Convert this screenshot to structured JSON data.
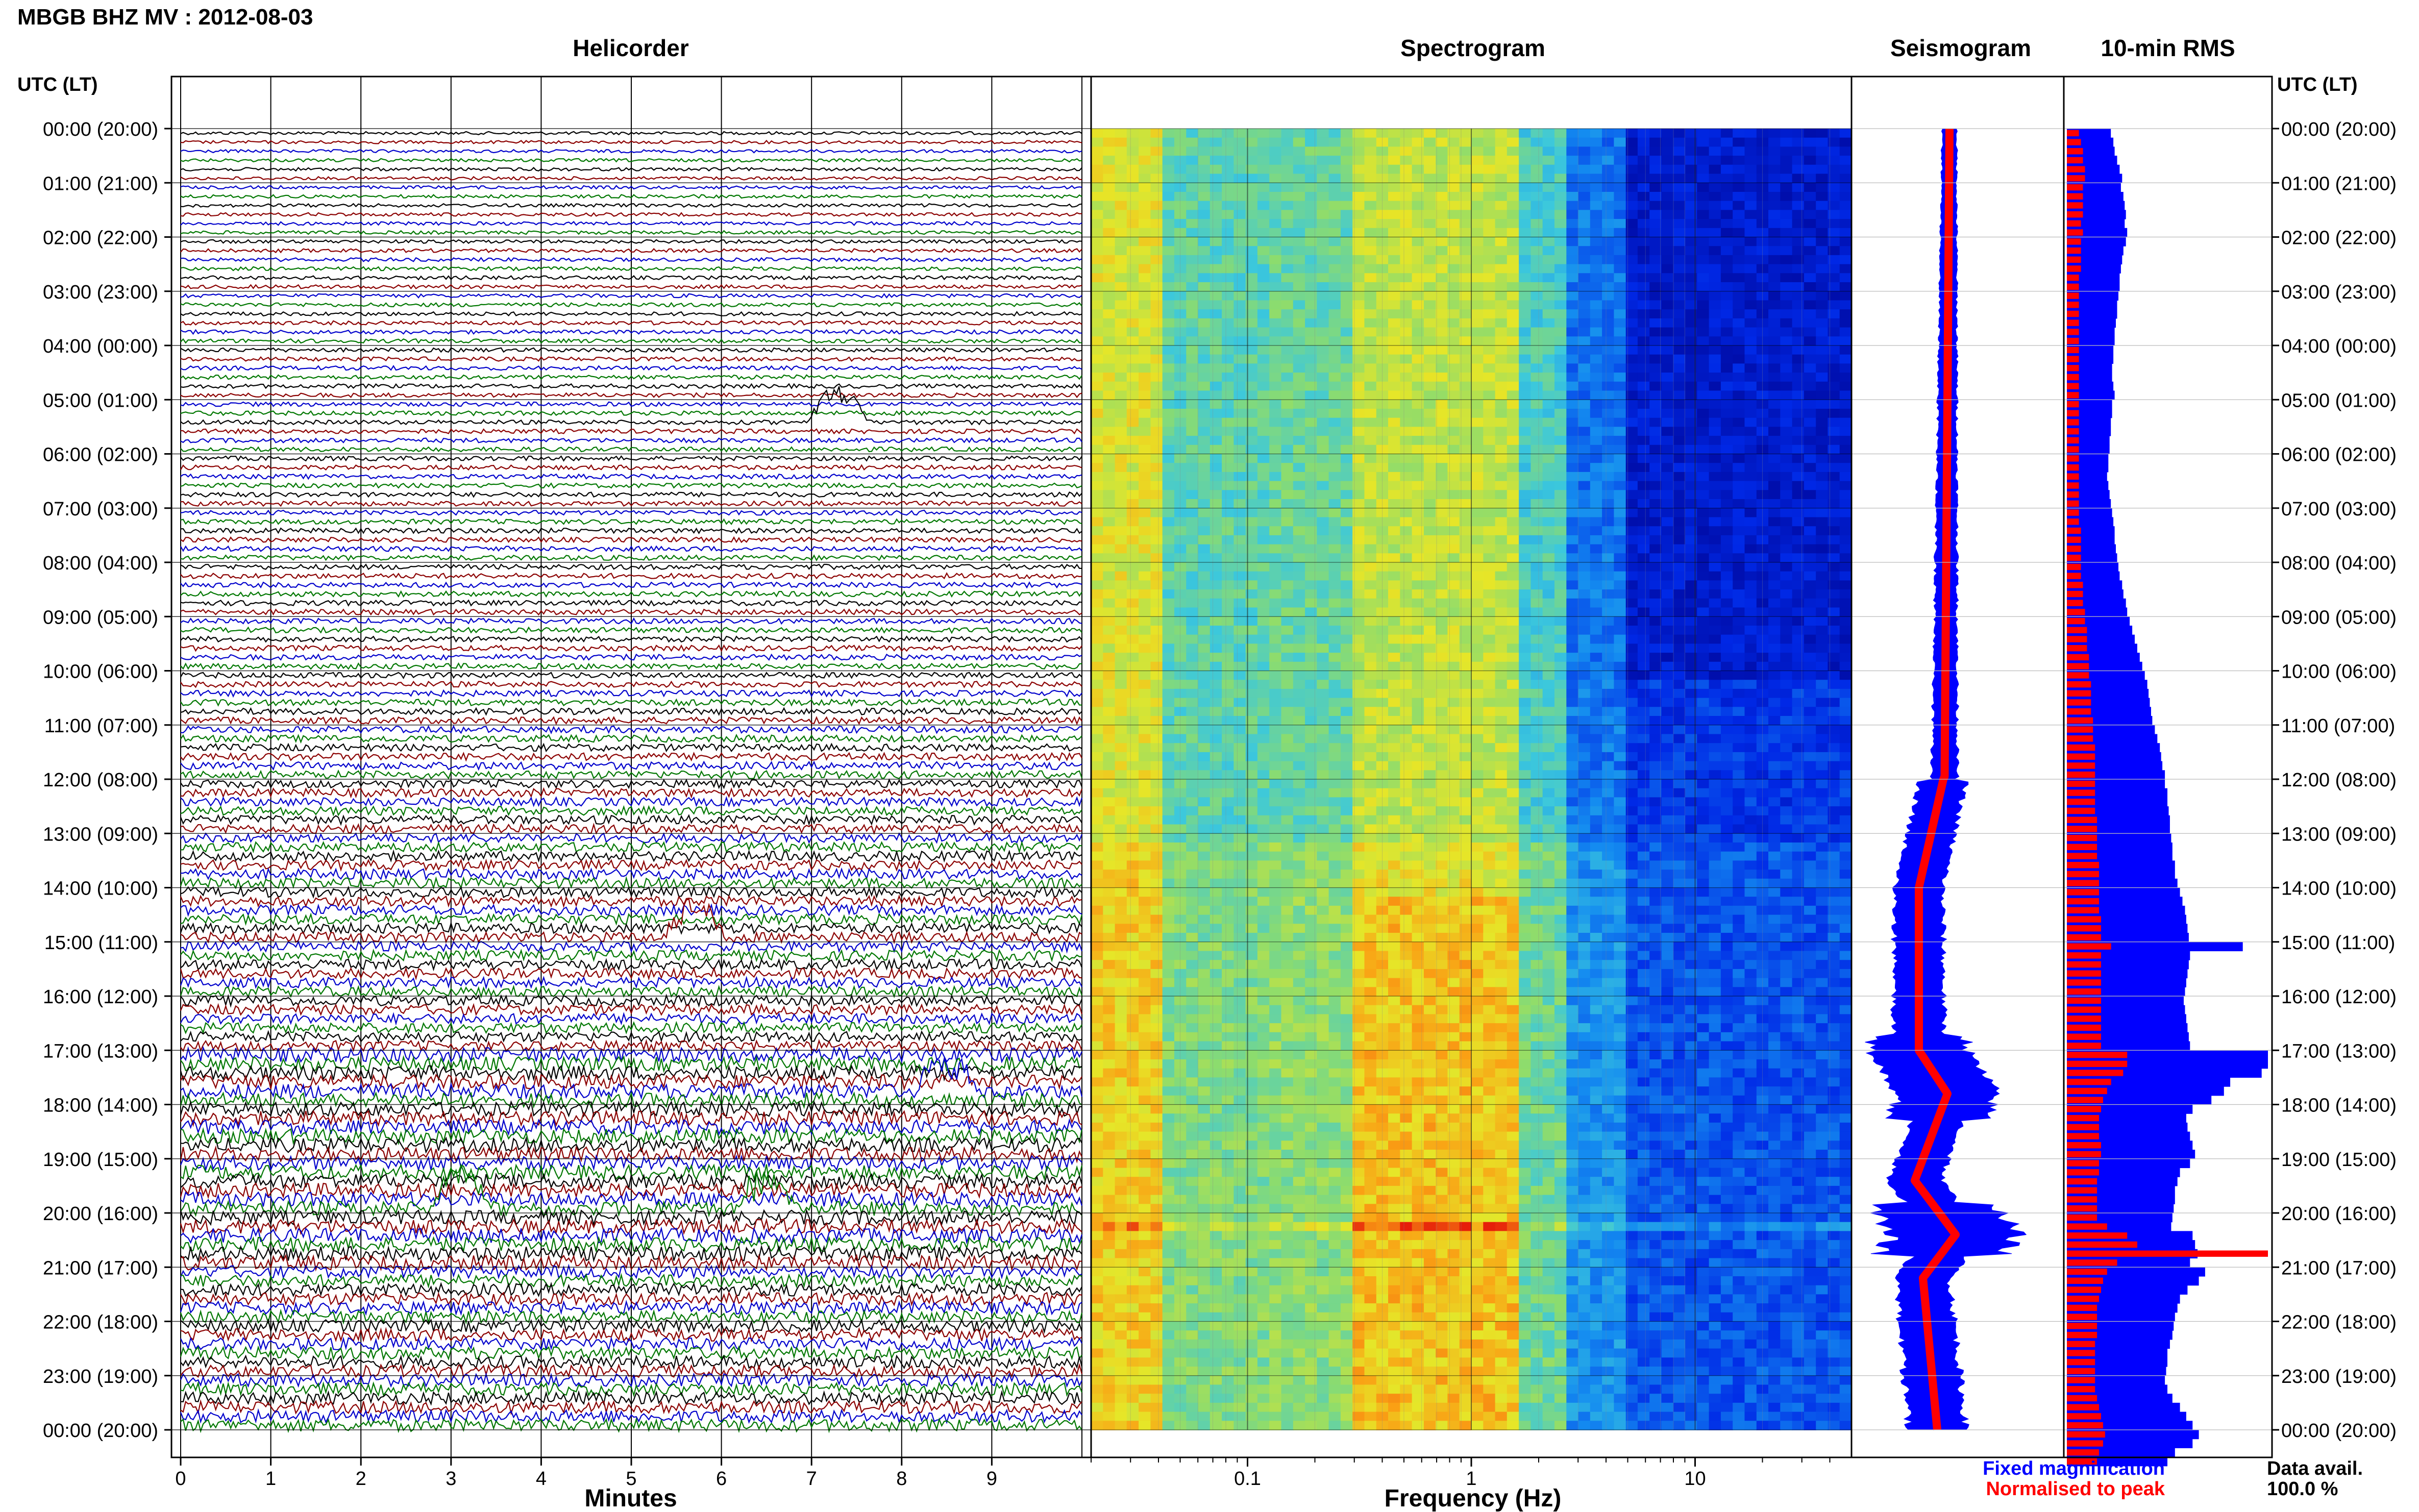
{
  "header": {
    "title": "MBGB BHZ MV : 2012-08-03",
    "utc_lt_left": "UTC (LT)",
    "utc_lt_right": "UTC (LT)"
  },
  "panels": {
    "helicorder": "Helicorder",
    "spectrogram": "Spectrogram",
    "seismogram": "Seismogram",
    "rms": "10-min RMS"
  },
  "time_labels": [
    "00:00 (20:00)",
    "01:00 (21:00)",
    "02:00 (22:00)",
    "03:00 (23:00)",
    "04:00 (00:00)",
    "05:00 (01:00)",
    "06:00 (02:00)",
    "07:00 (03:00)",
    "08:00 (04:00)",
    "09:00 (05:00)",
    "10:00 (06:00)",
    "11:00 (07:00)",
    "12:00 (08:00)",
    "13:00 (09:00)",
    "14:00 (10:00)",
    "15:00 (11:00)",
    "16:00 (12:00)",
    "17:00 (13:00)",
    "18:00 (14:00)",
    "19:00 (15:00)",
    "20:00 (16:00)",
    "21:00 (17:00)",
    "22:00 (18:00)",
    "23:00 (19:00)",
    "00:00 (20:00)"
  ],
  "axes": {
    "minutes_label": "Minutes",
    "minutes_ticks": [
      "0",
      "1",
      "2",
      "3",
      "4",
      "5",
      "6",
      "7",
      "8",
      "9"
    ],
    "frequency_label": "Frequency (Hz)",
    "frequency_ticks": [
      "0.1",
      "1",
      "10"
    ]
  },
  "legend": {
    "fixed": "Fixed magnification",
    "normalised": "Normalised to peak",
    "fixed_color": "#0000ff",
    "normalised_color": "#ff0000"
  },
  "availability": {
    "label": "Data avail.",
    "value": "100.0 %"
  },
  "chart_data": {
    "type": "heatmap",
    "trace_colors": [
      "#000000",
      "#8b0000",
      "#0000cc",
      "#007700"
    ],
    "helicorder_events_minutes": [
      {
        "hour": 5.3,
        "minute": 7.3
      },
      {
        "hour": 14.9,
        "minute": 5.7
      },
      {
        "hour": 17.7,
        "minute": 8.5
      },
      {
        "hour": 19.8,
        "minute": 3.1
      },
      {
        "hour": 19.9,
        "minute": 6.5
      }
    ],
    "freq_range_hz": [
      0.02,
      50
    ],
    "rms_fixed": [
      0.35,
      0.37,
      0.38,
      0.4,
      0.42,
      0.44,
      0.43,
      0.45,
      0.46,
      0.47,
      0.46,
      0.48,
      0.47,
      0.45,
      0.44,
      0.43,
      0.42,
      0.42,
      0.41,
      0.4,
      0.4,
      0.39,
      0.38,
      0.38,
      0.37,
      0.37,
      0.36,
      0.36,
      0.37,
      0.38,
      0.36,
      0.36,
      0.35,
      0.35,
      0.34,
      0.34,
      0.33,
      0.33,
      0.32,
      0.33,
      0.34,
      0.35,
      0.36,
      0.37,
      0.38,
      0.38,
      0.39,
      0.4,
      0.41,
      0.42,
      0.44,
      0.45,
      0.47,
      0.48,
      0.5,
      0.52,
      0.54,
      0.56,
      0.58,
      0.6,
      0.62,
      0.64,
      0.65,
      0.66,
      0.67,
      0.68,
      0.7,
      0.72,
      0.74,
      0.75,
      0.76,
      0.78,
      0.78,
      0.8,
      0.8,
      0.81,
      0.82,
      0.82,
      0.83,
      0.84,
      0.84,
      0.86,
      0.86,
      0.88,
      0.9,
      0.92,
      0.94,
      0.95,
      0.96,
      0.97,
      1.4,
      0.98,
      0.97,
      0.96,
      0.95,
      0.94,
      0.93,
      0.94,
      0.95,
      0.96,
      0.97,
      0.98,
      1.6,
      1.6,
      1.55,
      1.3,
      1.25,
      1.15,
      1.0,
      0.95,
      0.96,
      0.98,
      1.0,
      1.02,
      0.98,
      0.9,
      0.88,
      0.86,
      0.86,
      0.85,
      0.84,
      0.83,
      1.0,
      1.02,
      1.04,
      0.98,
      1.1,
      1.05,
      0.96,
      0.9,
      0.88,
      0.86,
      0.85,
      0.84,
      0.82,
      0.8,
      0.8,
      0.79,
      0.78,
      0.8,
      0.84,
      0.9,
      0.95,
      1.0,
      1.05,
      1.0,
      0.86,
      0.8
    ],
    "rms_normalised": [
      0.06,
      0.07,
      0.08,
      0.08,
      0.09,
      0.09,
      0.08,
      0.08,
      0.08,
      0.08,
      0.07,
      0.08,
      0.07,
      0.07,
      0.07,
      0.07,
      0.06,
      0.06,
      0.06,
      0.06,
      0.06,
      0.06,
      0.06,
      0.06,
      0.06,
      0.06,
      0.06,
      0.06,
      0.06,
      0.06,
      0.06,
      0.06,
      0.06,
      0.06,
      0.06,
      0.06,
      0.06,
      0.06,
      0.06,
      0.06,
      0.06,
      0.06,
      0.06,
      0.06,
      0.07,
      0.07,
      0.07,
      0.07,
      0.07,
      0.07,
      0.08,
      0.08,
      0.08,
      0.09,
      0.09,
      0.1,
      0.1,
      0.1,
      0.11,
      0.11,
      0.11,
      0.12,
      0.12,
      0.12,
      0.12,
      0.13,
      0.13,
      0.13,
      0.14,
      0.14,
      0.14,
      0.14,
      0.14,
      0.14,
      0.14,
      0.14,
      0.15,
      0.15,
      0.15,
      0.15,
      0.15,
      0.16,
      0.16,
      0.16,
      0.16,
      0.16,
      0.16,
      0.17,
      0.17,
      0.17,
      0.22,
      0.17,
      0.17,
      0.17,
      0.17,
      0.17,
      0.17,
      0.17,
      0.17,
      0.17,
      0.17,
      0.17,
      0.3,
      0.3,
      0.28,
      0.22,
      0.2,
      0.18,
      0.17,
      0.16,
      0.16,
      0.16,
      0.17,
      0.17,
      0.16,
      0.16,
      0.15,
      0.15,
      0.15,
      0.15,
      0.15,
      0.2,
      0.3,
      0.35,
      1.0,
      0.25,
      0.2,
      0.18,
      0.17,
      0.16,
      0.15,
      0.15,
      0.15,
      0.15,
      0.14,
      0.14,
      0.14,
      0.14,
      0.14,
      0.14,
      0.15,
      0.16,
      0.17,
      0.18,
      0.19,
      0.18,
      0.16,
      0.15
    ]
  }
}
